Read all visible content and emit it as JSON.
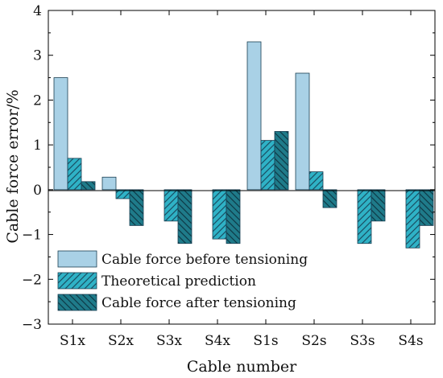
{
  "chart_data": {
    "type": "bar",
    "xlabel": "Cable number",
    "ylabel": "Cable force error/%",
    "ylim": [
      -3,
      4
    ],
    "yticks": [
      "−3",
      "−2",
      "−1",
      "0",
      "1",
      "2",
      "3",
      "4"
    ],
    "categories": [
      "S1x",
      "S2x",
      "S3x",
      "S4x",
      "S1s",
      "S2s",
      "S3s",
      "S4s"
    ],
    "legend_position": "bottom-left",
    "grid": false,
    "series": [
      {
        "name": "Cable force before tensioning",
        "color": "#a9d1e6",
        "pattern": "none",
        "values": [
          2.5,
          0.28,
          0,
          0,
          3.3,
          2.6,
          0,
          0
        ]
      },
      {
        "name": "Theoretical prediction",
        "color": "#2fb2c6",
        "pattern": "diag-up",
        "values": [
          0.7,
          -0.2,
          -0.7,
          -1.1,
          1.1,
          0.4,
          -1.2,
          -1.3
        ]
      },
      {
        "name": "Cable force after tensioning",
        "color": "#1f7b8a",
        "pattern": "diag-down",
        "values": [
          0.18,
          -0.8,
          -1.2,
          -1.2,
          1.3,
          -0.4,
          -0.7,
          -0.8
        ]
      }
    ]
  }
}
